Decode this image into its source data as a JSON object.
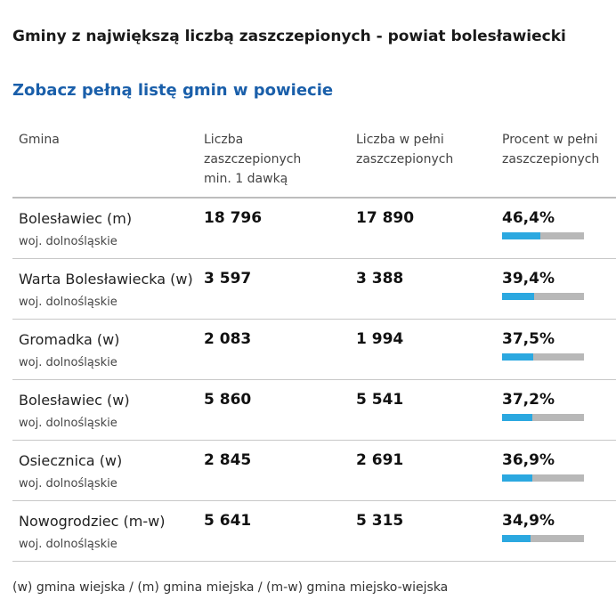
{
  "title": "Gminy z największą liczbą zaszczepionych - powiat bolesławiecki",
  "link_label": "Zobacz pełną listę gmin w powiecie",
  "table": {
    "headers": {
      "gmina": "Gmina",
      "dose1": [
        "Liczba",
        "zaszczepionych",
        "min. 1 dawką"
      ],
      "full": [
        "Liczba w pełni",
        "zaszczepionych"
      ],
      "percent": [
        "Procent w pełni",
        "zaszczepionych"
      ]
    },
    "rows": [
      {
        "name": "Bolesławiec (m)",
        "region": "woj. dolnośląskie",
        "dose1": "18 796",
        "full": "17 890",
        "percent_label": "46,4%",
        "percent_value": 46.4
      },
      {
        "name": "Warta Bolesławiecka (w)",
        "region": "woj. dolnośląskie",
        "dose1": "3 597",
        "full": "3 388",
        "percent_label": "39,4%",
        "percent_value": 39.4
      },
      {
        "name": "Gromadka (w)",
        "region": "woj. dolnośląskie",
        "dose1": "2 083",
        "full": "1 994",
        "percent_label": "37,5%",
        "percent_value": 37.5
      },
      {
        "name": "Bolesławiec (w)",
        "region": "woj. dolnośląskie",
        "dose1": "5 860",
        "full": "5 541",
        "percent_label": "37,2%",
        "percent_value": 37.2
      },
      {
        "name": "Osiecznica (w)",
        "region": "woj. dolnośląskie",
        "dose1": "2 845",
        "full": "2 691",
        "percent_label": "36,9%",
        "percent_value": 36.9
      },
      {
        "name": "Nowogrodziec (m-w)",
        "region": "woj. dolnośląskie",
        "dose1": "5 641",
        "full": "5 315",
        "percent_label": "34,9%",
        "percent_value": 34.9
      }
    ]
  },
  "footnote": "(w) gmina wiejska / (m) gmina miejska / (m-w) gmina miejsko-wiejska",
  "colors": {
    "link": "#1a5faa",
    "bar_fill": "#2ba8e0",
    "bar_track": "#b8b8b8"
  }
}
